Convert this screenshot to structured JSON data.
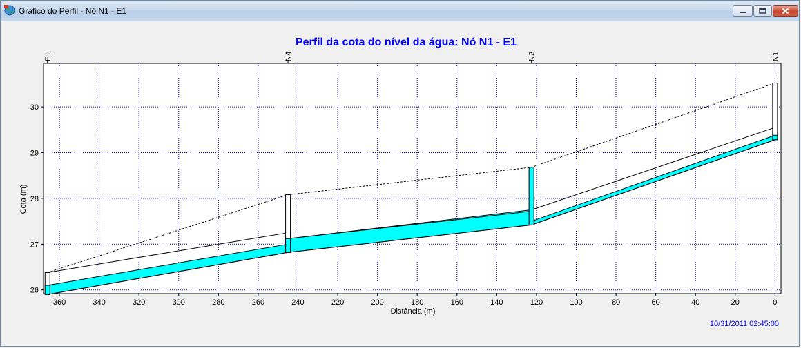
{
  "window": {
    "title": "Gráfico do Perfil - Nó N1 - E1",
    "icon": "globe-app-icon",
    "controls": [
      "minimize-icon",
      "maximize-icon",
      "close-icon"
    ]
  },
  "chart_data": {
    "type": "line",
    "title": "Perfil da cota do nível da água:  Nó N1 - E1",
    "xlabel": "Distância (m)",
    "ylabel": "Cota (m)",
    "timestamp": "10/31/2011 02:45:00",
    "xlim": [
      368,
      -3
    ],
    "ylim": [
      25.92,
      30.95
    ],
    "x_ticks": [
      360,
      340,
      320,
      300,
      280,
      260,
      240,
      220,
      200,
      180,
      160,
      140,
      120,
      100,
      80,
      60,
      40,
      20,
      0
    ],
    "y_ticks": [
      26,
      27,
      28,
      29,
      30
    ],
    "grid": true,
    "nodes": [
      {
        "name": "E1",
        "x": 366,
        "bottom": 25.9,
        "top": 26.38
      },
      {
        "name": "N4",
        "x": 245,
        "bottom": 26.82,
        "top": 28.08
      },
      {
        "name": "N2",
        "x": 122.5,
        "bottom": 27.42,
        "top": 28.68
      },
      {
        "name": "N1",
        "x": 0,
        "bottom": 29.28,
        "top": 30.52
      }
    ],
    "series": [
      {
        "name": "pipe_invert",
        "x": [
          366,
          245,
          245,
          122.5,
          122.5,
          0
        ],
        "values": [
          25.9,
          26.82,
          26.82,
          27.42,
          27.42,
          29.28
        ]
      },
      {
        "name": "water_level",
        "x": [
          366,
          245,
          245,
          122.5,
          122.5,
          0
        ],
        "values": [
          26.1,
          27.0,
          27.12,
          27.75,
          27.5,
          29.38
        ]
      },
      {
        "name": "pipe_crown",
        "x": [
          366,
          245,
          245,
          122.5,
          122.5,
          0
        ],
        "values": [
          26.38,
          27.25,
          27.12,
          27.72,
          27.75,
          29.55
        ]
      },
      {
        "name": "ground_level",
        "x": [
          366,
          245,
          122.5,
          0
        ],
        "values": [
          26.38,
          28.08,
          28.68,
          30.52
        ]
      }
    ],
    "colors": {
      "water": "#00ffff",
      "grid": "#0000cc",
      "title": "#0000ff",
      "timestamp": "#0000ff"
    }
  }
}
